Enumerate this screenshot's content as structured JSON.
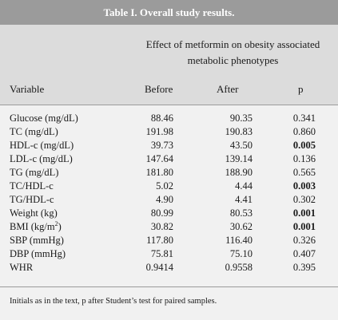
{
  "table": {
    "title": "Table I. Overall study results.",
    "group_header": "Effect of metformin on obesity associated metabolic phenotypes",
    "columns": {
      "variable": "Variable",
      "before": "Before",
      "after": "After",
      "p": "p"
    },
    "rows": [
      {
        "variable": "Glucose (mg/dL)",
        "before": "88.46",
        "after": "90.35",
        "p": "0.341",
        "p_bold": false
      },
      {
        "variable": "TC (mg/dL)",
        "before": "191.98",
        "after": "190.83",
        "p": "0.860",
        "p_bold": false
      },
      {
        "variable": "HDL-c (mg/dL)",
        "before": "39.73",
        "after": "43.50",
        "p": "0.005",
        "p_bold": true
      },
      {
        "variable": "LDL-c (mg/dL)",
        "before": "147.64",
        "after": "139.14",
        "p": "0.136",
        "p_bold": false
      },
      {
        "variable": "TG (mg/dL)",
        "before": "181.80",
        "after": "188.90",
        "p": "0.565",
        "p_bold": false
      },
      {
        "variable": "TC/HDL-c",
        "before": "5.02",
        "after": "4.44",
        "p": "0.003",
        "p_bold": true
      },
      {
        "variable": "TG/HDL-c",
        "before": "4.90",
        "after": "4.41",
        "p": "0.302",
        "p_bold": false
      },
      {
        "variable": "Weight (kg)",
        "before": "80.99",
        "after": "80.53",
        "p": "0.001",
        "p_bold": true
      },
      {
        "variable": "BMI (kg/m",
        "variable_sup": "2",
        "variable_suffix": ")",
        "before": "30.82",
        "after": "30.62",
        "p": "0.001",
        "p_bold": true
      },
      {
        "variable": "SBP (mmHg)",
        "before": "117.80",
        "after": "116.40",
        "p": "0.326",
        "p_bold": false
      },
      {
        "variable": "DBP (mmHg)",
        "before": "75.81",
        "after": "75.10",
        "p": "0.407",
        "p_bold": false
      },
      {
        "variable": "WHR",
        "before": "0.9414",
        "after": "0.9558",
        "p": "0.395",
        "p_bold": false
      }
    ],
    "footnote": "Initials as in the text, p after Student’s test for paired samples."
  }
}
